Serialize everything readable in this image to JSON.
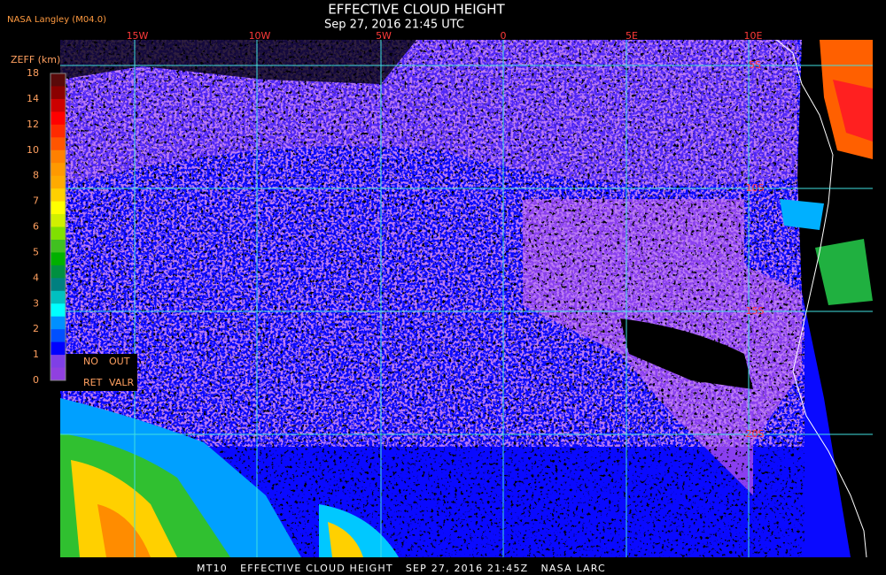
{
  "header": {
    "title": "EFFECTIVE CLOUD HEIGHT",
    "subtitle": "Sep 27, 2016 21:45 UTC",
    "source": "NASA Langley (M04.0)"
  },
  "legend": {
    "title": "ZEFF (km)",
    "labels": [
      "18",
      "14",
      "12",
      "10",
      "8",
      "7",
      "6",
      "5",
      "4",
      "3",
      "2",
      "1",
      "0"
    ],
    "colors": [
      "#5a0a0a",
      "#8b0000",
      "#cc0000",
      "#ff0000",
      "#ff2a00",
      "#ff5500",
      "#ff8000",
      "#ff9900",
      "#ffaa00",
      "#ffd000",
      "#ffff00",
      "#d0f000",
      "#80e000",
      "#40c020",
      "#00b000",
      "#009040",
      "#008080",
      "#00c0c0",
      "#00ffff",
      "#0090ff",
      "#0050ff",
      "#0000ff",
      "#7f3fe6",
      "#9040e0"
    ],
    "notes": [
      "NO",
      "OUT",
      "RET",
      "VALR"
    ]
  },
  "map": {
    "longitudes": [
      "15W",
      "10W",
      "5W",
      "0",
      "5E",
      "10E"
    ],
    "latitudes": [
      "5S",
      "10S",
      "15S",
      "20S"
    ]
  },
  "footer": "MT10   EFFECTIVE CLOUD HEIGHT   SEP 27, 2016 21:45Z   NASA LARC"
}
